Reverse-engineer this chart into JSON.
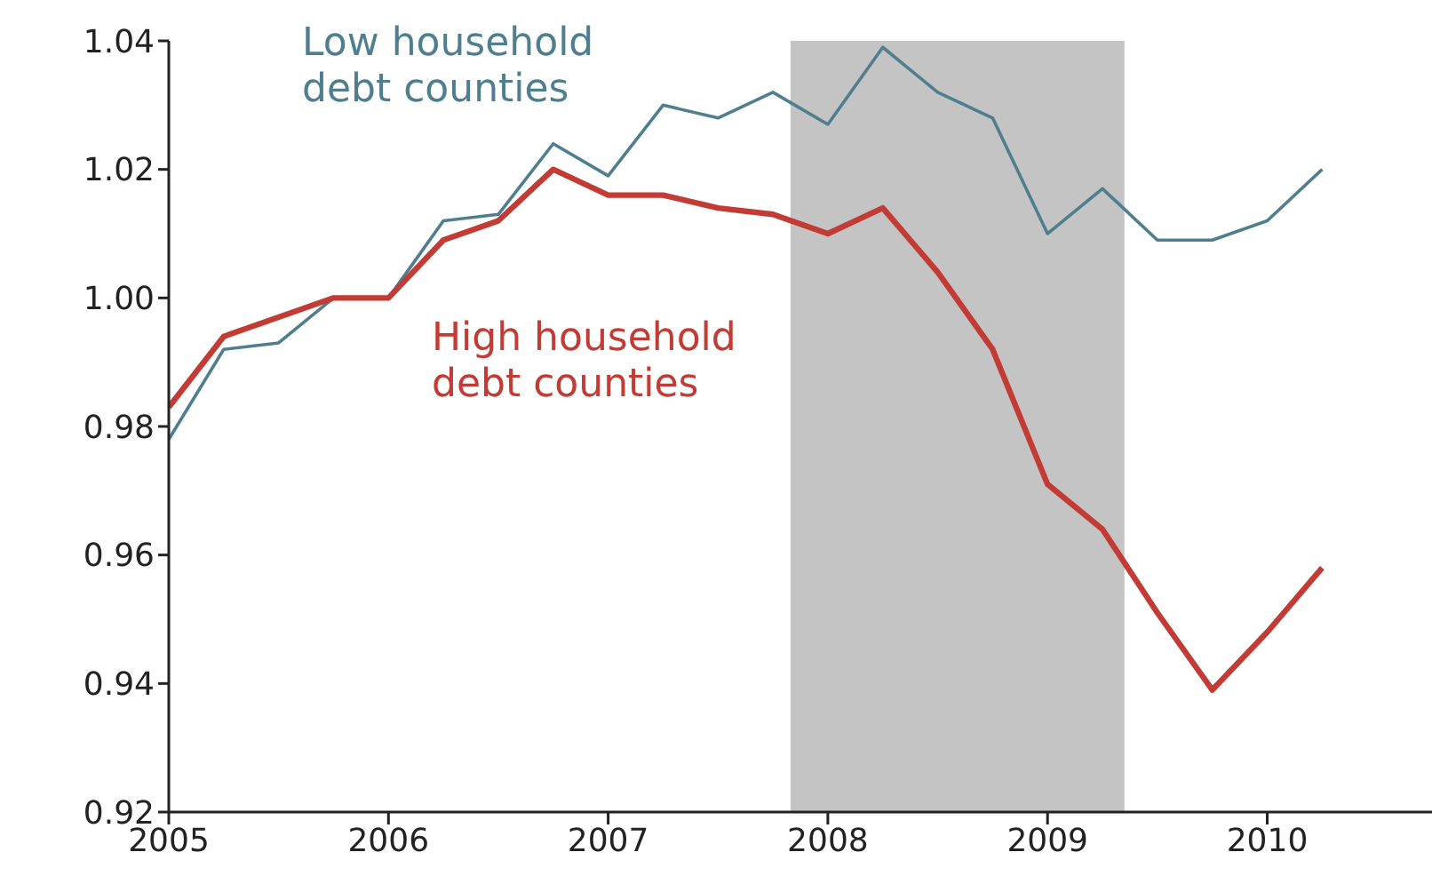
{
  "chart_data": {
    "type": "line",
    "x": [
      2005,
      2005.25,
      2005.5,
      2005.75,
      2006,
      2006.25,
      2006.5,
      2006.75,
      2007,
      2007.25,
      2007.5,
      2007.75,
      2008,
      2008.25,
      2008.5,
      2008.75,
      2009,
      2009.25,
      2009.5,
      2009.75,
      2010,
      2010.25
    ],
    "series": [
      {
        "name": "Low household debt counties",
        "color": "#4f7f8f",
        "values": [
          0.978,
          0.992,
          0.993,
          1.0,
          1.0,
          1.012,
          1.013,
          1.024,
          1.019,
          1.03,
          1.028,
          1.032,
          1.027,
          1.039,
          1.032,
          1.028,
          1.01,
          1.017,
          1.009,
          1.009,
          1.012,
          1.02
        ]
      },
      {
        "name": "High household debt counties",
        "color": "#c23b34",
        "values": [
          0.983,
          0.994,
          0.997,
          1.0,
          1.0,
          1.009,
          1.012,
          1.02,
          1.016,
          1.016,
          1.014,
          1.013,
          1.01,
          1.014,
          1.004,
          0.992,
          0.971,
          0.964,
          0.951,
          0.939,
          0.948,
          0.958
        ]
      }
    ],
    "xlim": [
      2005,
      2010.75
    ],
    "xticks": [
      2005,
      2006,
      2007,
      2008,
      2009,
      2010
    ],
    "ylim": [
      0.92,
      1.04
    ],
    "yticks": [
      {
        "value": 0.92,
        "label": "0.92"
      },
      {
        "value": 0.94,
        "label": "0.94"
      },
      {
        "value": 0.96,
        "label": "0.96"
      },
      {
        "value": 0.98,
        "label": "0.98"
      },
      {
        "value": 1.0,
        "label": "1.00"
      },
      {
        "value": 1.02,
        "label": "1.02"
      },
      {
        "value": 1.04,
        "label": "1.04"
      }
    ],
    "bands": [
      {
        "axis": "x",
        "from": 2007.83,
        "to": 2009.35,
        "color": "#c4c4c4"
      }
    ],
    "grid": false,
    "marker": "none",
    "line_style": "solid"
  }
}
